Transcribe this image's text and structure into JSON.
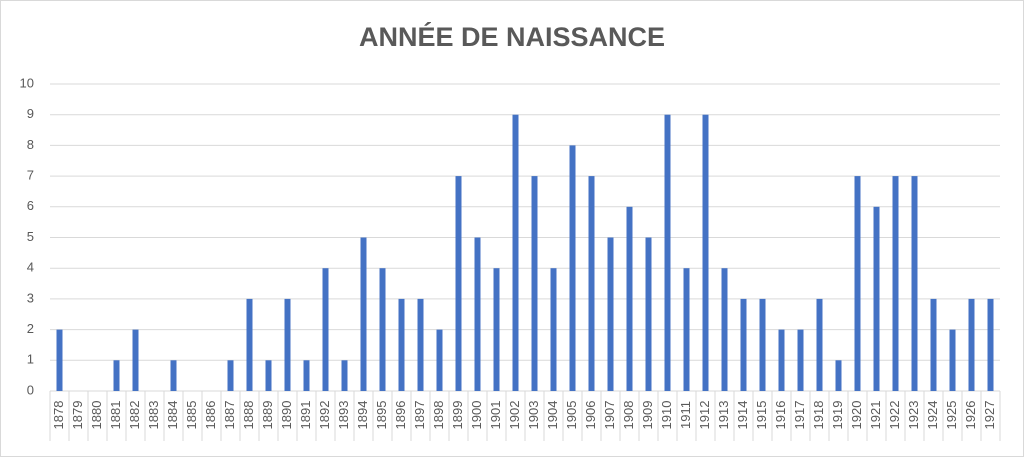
{
  "chart_data": {
    "type": "bar",
    "title": "ANNÉE DE NAISSANCE",
    "categories": [
      "1878",
      "1879",
      "1880",
      "1881",
      "1882",
      "1883",
      "1884",
      "1885",
      "1886",
      "1887",
      "1888",
      "1889",
      "1890",
      "1891",
      "1892",
      "1893",
      "1894",
      "1895",
      "1896",
      "1897",
      "1898",
      "1899",
      "1900",
      "1901",
      "1902",
      "1903",
      "1904",
      "1905",
      "1906",
      "1907",
      "1908",
      "1909",
      "1910",
      "1911",
      "1912",
      "1913",
      "1914",
      "1915",
      "1916",
      "1917",
      "1918",
      "1919",
      "1920",
      "1921",
      "1922",
      "1923",
      "1924",
      "1925",
      "1926",
      "1927"
    ],
    "values": [
      2,
      0,
      0,
      1,
      2,
      0,
      1,
      0,
      0,
      1,
      3,
      1,
      3,
      1,
      4,
      1,
      5,
      4,
      3,
      3,
      2,
      7,
      5,
      4,
      9,
      7,
      4,
      8,
      7,
      5,
      6,
      5,
      9,
      4,
      9,
      4,
      3,
      3,
      2,
      2,
      3,
      1,
      7,
      6,
      7,
      7,
      3,
      2,
      3,
      3
    ],
    "color": "#4472c4",
    "ylim": [
      0,
      10
    ],
    "yticks": [
      0,
      1,
      2,
      3,
      4,
      5,
      6,
      7,
      8,
      9,
      10
    ],
    "grid": true
  }
}
